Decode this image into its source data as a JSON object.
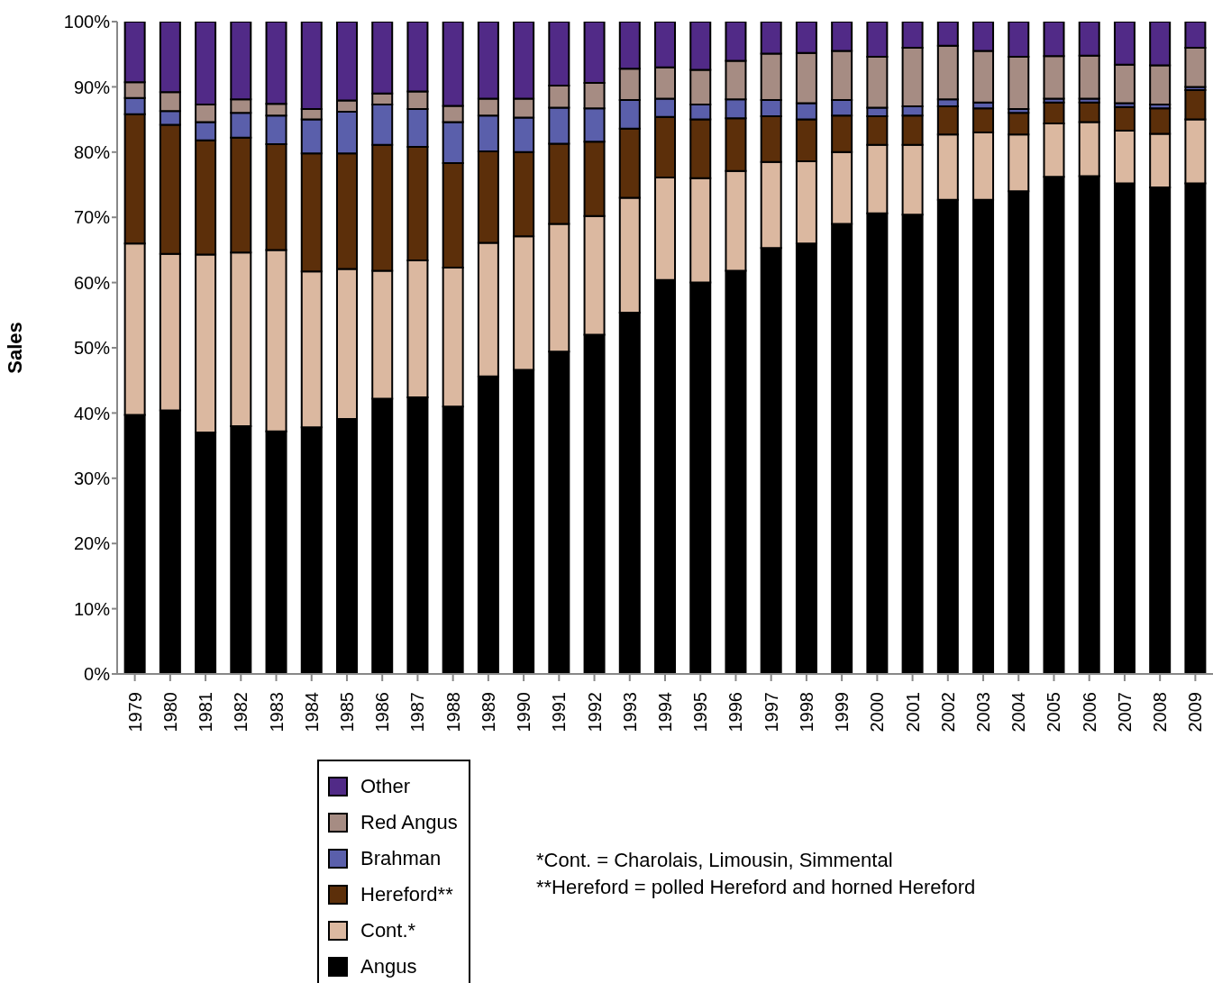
{
  "chart_data": {
    "type": "bar",
    "stacked": true,
    "ylabel": "Sales",
    "categories": [
      "1979",
      "1980",
      "1981",
      "1982",
      "1983",
      "1984",
      "1985",
      "1986",
      "1987",
      "1988",
      "1989",
      "1990",
      "1991",
      "1992",
      "1993",
      "1994",
      "1995",
      "1996",
      "1997",
      "1998",
      "1999",
      "2000",
      "2001",
      "2002",
      "2003",
      "2004",
      "2005",
      "2006",
      "2007",
      "2008",
      "2009"
    ],
    "series": [
      {
        "name": "Angus",
        "color": "#000000",
        "values": [
          39.7,
          40.4,
          37.0,
          38.0,
          37.2,
          37.8,
          39.1,
          42.2,
          42.4,
          41.0,
          45.6,
          46.6,
          49.4,
          52.0,
          55.4,
          60.4,
          60.0,
          61.8,
          65.3,
          66.0,
          69.0,
          70.6,
          70.4,
          72.7,
          72.7,
          74.0,
          76.2,
          76.3,
          75.2,
          74.6,
          75.2
        ]
      },
      {
        "name": "Cont.*",
        "color": "#dbb8a0",
        "values": [
          26.3,
          24.0,
          27.3,
          26.6,
          27.8,
          23.9,
          23.0,
          19.6,
          21.0,
          21.3,
          20.5,
          20.5,
          19.6,
          18.2,
          17.6,
          15.7,
          16.0,
          15.3,
          13.2,
          12.6,
          11.0,
          10.5,
          10.7,
          10.0,
          10.3,
          8.7,
          8.2,
          8.3,
          8.1,
          8.2,
          9.8
        ]
      },
      {
        "name": "Hereford**",
        "color": "#5c2f0a",
        "values": [
          19.8,
          19.8,
          17.5,
          17.6,
          16.2,
          18.1,
          17.7,
          19.3,
          17.4,
          16.0,
          14.0,
          12.9,
          12.3,
          11.4,
          10.6,
          9.3,
          9.0,
          8.1,
          7.0,
          6.4,
          5.6,
          4.4,
          4.5,
          4.3,
          3.7,
          3.3,
          3.2,
          3.0,
          3.6,
          3.9,
          4.5
        ]
      },
      {
        "name": "Brahman",
        "color": "#5a5fab",
        "values": [
          2.5,
          2.1,
          2.8,
          3.8,
          4.4,
          5.2,
          6.4,
          6.2,
          5.8,
          6.3,
          5.5,
          5.3,
          5.5,
          5.1,
          4.4,
          2.8,
          2.3,
          2.9,
          2.5,
          2.5,
          2.4,
          1.3,
          1.4,
          1.1,
          0.9,
          0.6,
          0.6,
          0.6,
          0.6,
          0.6,
          0.5
        ]
      },
      {
        "name": "Red Angus",
        "color": "#a68c83",
        "values": [
          2.4,
          2.9,
          2.7,
          2.1,
          1.8,
          1.6,
          1.7,
          1.7,
          2.7,
          2.5,
          2.6,
          2.9,
          3.4,
          3.9,
          4.8,
          4.8,
          5.3,
          5.9,
          7.1,
          7.7,
          7.5,
          7.8,
          9.0,
          8.2,
          7.9,
          8.0,
          6.5,
          6.6,
          5.9,
          6.0,
          6.0
        ]
      },
      {
        "name": "Other",
        "color": "#512a87",
        "values": [
          9.3,
          10.8,
          12.7,
          11.9,
          12.6,
          13.4,
          12.1,
          11.0,
          10.7,
          12.9,
          11.8,
          11.8,
          9.8,
          9.4,
          7.2,
          7.0,
          7.4,
          6.0,
          4.9,
          4.8,
          4.5,
          5.4,
          4.0,
          3.7,
          4.5,
          5.4,
          5.3,
          5.2,
          6.6,
          6.7,
          4.0
        ]
      }
    ],
    "ylim": [
      0,
      100
    ],
    "yticks": [
      {
        "value": 0,
        "label": "0%"
      },
      {
        "value": 10,
        "label": "10%"
      },
      {
        "value": 20,
        "label": "20%"
      },
      {
        "value": 30,
        "label": "30%"
      },
      {
        "value": 40,
        "label": "40%"
      },
      {
        "value": 50,
        "label": "50%"
      },
      {
        "value": 60,
        "label": "60%"
      },
      {
        "value": 70,
        "label": "70%"
      },
      {
        "value": 80,
        "label": "80%"
      },
      {
        "value": 90,
        "label": "90%"
      },
      {
        "value": 100,
        "label": "100%"
      }
    ],
    "legend": "bottom",
    "annotations": [
      "*Cont. = Charolais, Limousin, Simmental",
      "**Hereford = polled Hereford and horned Hereford"
    ]
  }
}
